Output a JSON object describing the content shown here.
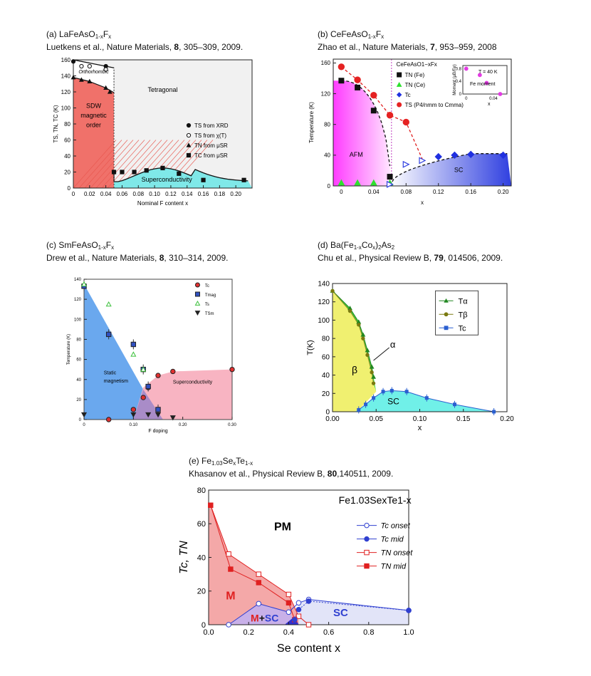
{
  "figure": {
    "panels": [
      {
        "label": "(a) LaFeAsO",
        "sub": "1-x",
        "label2": "F",
        "sub2": "x",
        "ref1": "Luetkens et al., Nature Materials, ",
        "vol": "8",
        "ref2": ", 305–309, 2009."
      },
      {
        "label": "(b) CeFeAsO",
        "sub": "1-x",
        "label2": "F",
        "sub2": "x",
        "ref1": "Zhao et al., Nature Materials, ",
        "vol": "7",
        "ref2": ", 953–959, 2008"
      },
      {
        "label": "(c) SmFeAsO",
        "sub": "1-x",
        "label2": "F",
        "sub2": "x",
        "ref1": "Drew et al., Nature Materials, ",
        "vol": "8",
        "ref2": ", 310–314, 2009."
      },
      {
        "label": "(d) Ba(Fe",
        "sub": "1-x",
        "label2": "Co",
        "sub2": "x",
        "label3": ")",
        "sub3": "2",
        "label4": "As",
        "sub4": "2",
        "ref1": "Chu et al., Physical Review B, ",
        "vol": "79",
        "ref2": ", 014506, 2009."
      },
      {
        "label": "(e) Fe",
        "sub": "1.03",
        "label2": "Se",
        "sub2": "x",
        "label3": "Te",
        "sub3": "1-x",
        "ref1": "Khasanov et al., Physical Review B, ",
        "vol": "80",
        "ref2": ",140511, 2009."
      }
    ]
  },
  "chart_data": [
    {
      "type": "scatter",
      "title": "LaFeAsO1-xFx",
      "xlabel": "Nominal F content x",
      "ylabel": "TS, TN, TC (K)",
      "xlim": [
        0,
        0.22
      ],
      "ylim": [
        0,
        160
      ],
      "xticks": [
        "0",
        "0.02",
        "0.04",
        "0.06",
        "0.08",
        "0.10",
        "0.12",
        "0.14",
        "0.16",
        "0.18",
        "0.20"
      ],
      "yticks": [
        "0",
        "20",
        "40",
        "60",
        "80",
        "100",
        "120",
        "140",
        "160"
      ],
      "regions": [
        "Orthorhombic",
        "Tetragonal",
        "SDW magnetic order",
        "Superconductivity"
      ],
      "legend": [
        "TS from XRD",
        "TS from χ(T)",
        "TN from μSR",
        "TC from μSR"
      ],
      "series": [
        {
          "name": "TS from XRD",
          "x": [
            0,
            0.04
          ],
          "y": [
            158,
            152
          ]
        },
        {
          "name": "TS from χ(T)",
          "x": [
            0.01,
            0.02,
            0.04
          ],
          "y": [
            152,
            152,
            148
          ]
        },
        {
          "name": "TN from μSR",
          "x": [
            0,
            0.01,
            0.02,
            0.04,
            0.045
          ],
          "y": [
            138,
            135,
            133,
            125,
            120
          ]
        },
        {
          "name": "TC from μSR",
          "x": [
            0.05,
            0.06,
            0.075,
            0.09,
            0.11,
            0.13,
            0.16,
            0.21
          ],
          "y": [
            20,
            20,
            20,
            22,
            25,
            18,
            10,
            10
          ]
        }
      ]
    },
    {
      "type": "scatter",
      "title": "CeFeAsO1-xFx",
      "xlabel": "x",
      "ylabel": "Temperature (K)",
      "xlim": [
        -0.01,
        0.21
      ],
      "ylim": [
        0,
        165
      ],
      "xticks": [
        "0",
        "0.04",
        "0.08",
        "0.12",
        "0.16",
        "0.20"
      ],
      "yticks": [
        "0",
        "40",
        "80",
        "120",
        "160"
      ],
      "regions": [
        "AFM",
        "SC"
      ],
      "annotation": "CeFeAsO1−xFx",
      "legend": [
        "TN (Fe)",
        "TN (Ce)",
        "Tc",
        "TS (P4/nmm to Cmma)"
      ],
      "series": [
        {
          "name": "TN (Fe)",
          "x": [
            0,
            0.02,
            0.04,
            0.06
          ],
          "y": [
            137,
            128,
            98,
            12
          ]
        },
        {
          "name": "TN (Ce)",
          "x": [
            0,
            0.02,
            0.04,
            0.06
          ],
          "y": [
            4,
            4,
            4,
            4
          ]
        },
        {
          "name": "Tc",
          "x": [
            0.06,
            0.08,
            0.1,
            0.12,
            0.14,
            0.16,
            0.2
          ],
          "y": [
            2,
            28,
            33,
            38,
            40,
            41,
            40
          ]
        },
        {
          "name": "TS",
          "x": [
            0,
            0.02,
            0.04,
            0.06,
            0.08
          ],
          "y": [
            155,
            138,
            118,
            92,
            83
          ]
        }
      ],
      "inset": {
        "label": "T = 40 K",
        "ylabel": "Moment (μB/Fe)",
        "xlabel": "x",
        "series_name": "Fe moment",
        "yticks": [
          "0",
          "0.4",
          "0.8"
        ],
        "xticks": [
          "0",
          "0.04"
        ],
        "x": [
          0,
          0.02,
          0.03,
          0.05
        ],
        "y": [
          0.8,
          0.6,
          0.35,
          0
        ]
      }
    },
    {
      "type": "scatter",
      "title": "SmFeAsO1-xFx",
      "xlabel": "F doping",
      "ylabel": "Temperature (K)",
      "xlim": [
        0,
        0.3
      ],
      "ylim": [
        0,
        140
      ],
      "xticks": [
        "0",
        "0.10",
        "0.20",
        "0.30"
      ],
      "yticks": [
        "0",
        "20",
        "40",
        "60",
        "80",
        "100",
        "120",
        "140"
      ],
      "regions": [
        "Static magnetism",
        "Superconductivity"
      ],
      "legend": [
        "Tc",
        "Tmag",
        "Ts",
        "TSm"
      ],
      "series": [
        {
          "name": "Tc",
          "x": [
            0.05,
            0.1,
            0.12,
            0.13,
            0.15,
            0.18,
            0.3
          ],
          "y": [
            0,
            10,
            22,
            32,
            44,
            48,
            50
          ]
        },
        {
          "name": "Tmag",
          "x": [
            0,
            0.05,
            0.1,
            0.12,
            0.13,
            0.15
          ],
          "y": [
            133,
            85,
            75,
            50,
            33,
            10
          ]
        },
        {
          "name": "Ts",
          "x": [
            0,
            0.05,
            0.1,
            0.12
          ],
          "y": [
            135,
            115,
            65,
            50
          ]
        },
        {
          "name": "TSm",
          "x": [
            0,
            0.1,
            0.13,
            0.15,
            0.18
          ],
          "y": [
            5,
            5,
            5,
            5,
            2
          ]
        }
      ]
    },
    {
      "type": "line",
      "title": "Ba(Fe1-xCox)2As2",
      "xlabel": "x",
      "ylabel": "T(K)",
      "xlim": [
        0,
        0.2
      ],
      "ylim": [
        0,
        140
      ],
      "xticks": [
        "0.00",
        "0.05",
        "0.10",
        "0.15",
        "0.20"
      ],
      "yticks": [
        "0",
        "20",
        "40",
        "60",
        "80",
        "100",
        "120",
        "140"
      ],
      "regions": [
        "β",
        "SC"
      ],
      "annotation": "α",
      "legend": [
        "Tα",
        "Tβ",
        "Tc"
      ],
      "series": [
        {
          "name": "Tα",
          "x": [
            0,
            0.02,
            0.03,
            0.035,
            0.04,
            0.045,
            0.047
          ],
          "y": [
            132,
            113,
            98,
            84,
            67,
            49,
            38
          ]
        },
        {
          "name": "Tβ",
          "x": [
            0,
            0.02,
            0.03,
            0.035,
            0.04,
            0.045,
            0.047
          ],
          "y": [
            132,
            110,
            95,
            80,
            62,
            43,
            31
          ]
        },
        {
          "name": "Tc",
          "x": [
            0.03,
            0.038,
            0.047,
            0.058,
            0.068,
            0.085,
            0.108,
            0.14,
            0.185
          ],
          "y": [
            2,
            8,
            15,
            22,
            23,
            22,
            15,
            8,
            0
          ]
        }
      ]
    },
    {
      "type": "line",
      "title": "Fe1.03SexTe1-x",
      "xlabel": "Se content x",
      "ylabel": "Tc, TN",
      "xlim": [
        0,
        1
      ],
      "ylim": [
        0,
        80
      ],
      "xticks": [
        "0.0",
        "0.2",
        "0.4",
        "0.6",
        "0.8",
        "1.0"
      ],
      "yticks": [
        "0",
        "20",
        "40",
        "60",
        "80"
      ],
      "regions": [
        "PM",
        "M",
        "M+SC",
        "SC"
      ],
      "legend_title": "Fe1.03SexTe1-x",
      "legend": [
        "Tc onset",
        "Tc mid",
        "TN onset",
        "TN mid"
      ],
      "series": [
        {
          "name": "Tc onset",
          "x": [
            0.1,
            0.25,
            0.4,
            0.45,
            0.5,
            1.0
          ],
          "y": [
            0,
            12.5,
            7.5,
            13,
            15,
            8.5
          ]
        },
        {
          "name": "Tc mid",
          "x": [
            0.43,
            0.45,
            0.5,
            1.0
          ],
          "y": [
            3,
            9,
            14,
            8.5
          ]
        },
        {
          "name": "TN onset",
          "x": [
            0.01,
            0.1,
            0.25,
            0.4,
            0.45,
            0.5
          ],
          "y": [
            71,
            42,
            30,
            18,
            5,
            0
          ]
        },
        {
          "name": "TN mid",
          "x": [
            0.01,
            0.11,
            0.25,
            0.4,
            0.43
          ],
          "y": [
            71,
            33,
            25,
            13,
            3
          ]
        }
      ]
    }
  ]
}
